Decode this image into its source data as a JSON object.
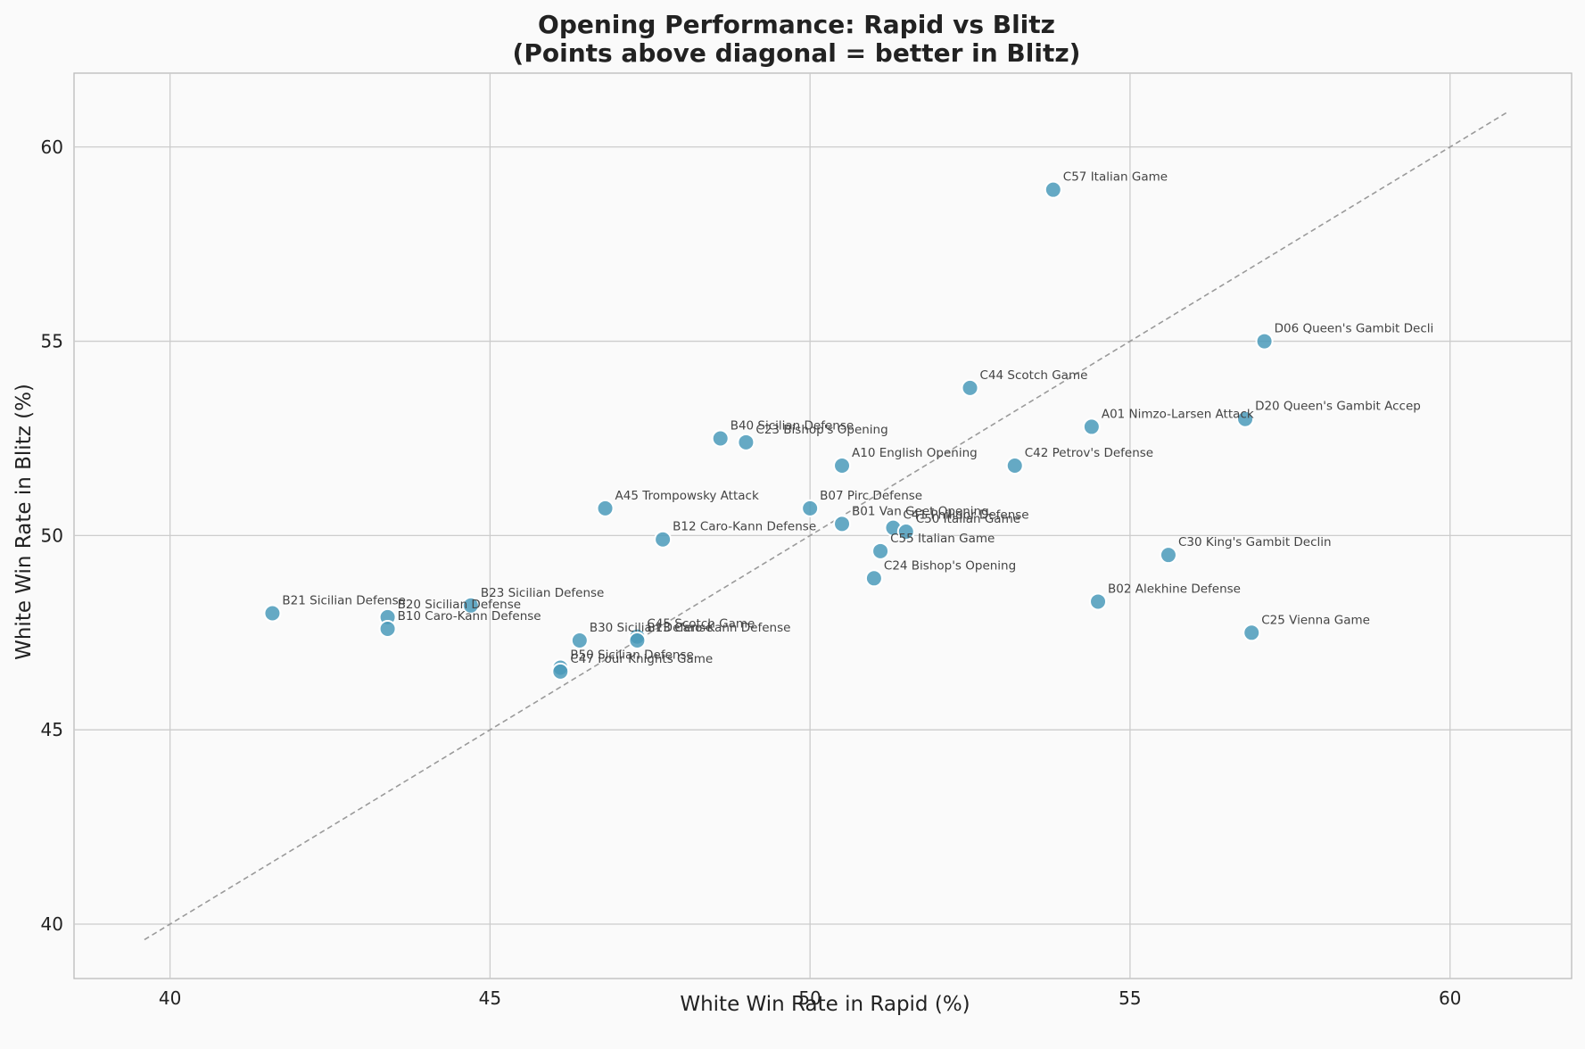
{
  "chart_data": {
    "type": "scatter",
    "title": "Opening Performance: Rapid vs Blitz",
    "subtitle": "(Points above diagonal = better in Blitz)",
    "xlabel": "White Win Rate in Rapid (%)",
    "ylabel": "White Win Rate in Blitz (%)",
    "xlim": [
      38.5,
      61.9
    ],
    "ylim": [
      38.6,
      61.9
    ],
    "xticks": [
      40,
      45,
      50,
      55,
      60
    ],
    "yticks": [
      40,
      45,
      50,
      55,
      60
    ],
    "grid": true,
    "reference_line": {
      "style": "dashed",
      "color": "#9a9a9a",
      "from": [
        39.6,
        39.6
      ],
      "to": [
        60.9,
        60.9
      ]
    },
    "point_color": "#4a9aba",
    "points": [
      {
        "label": "C57 Italian Game",
        "x": 53.8,
        "y": 58.9
      },
      {
        "label": "D06 Queen's Gambit Decli",
        "x": 57.1,
        "y": 55.0
      },
      {
        "label": "C44 Scotch Game",
        "x": 52.5,
        "y": 53.8
      },
      {
        "label": "D20 Queen's Gambit Accep",
        "x": 56.8,
        "y": 53.0
      },
      {
        "label": "A01 Nimzo-Larsen Attack",
        "x": 54.4,
        "y": 52.8
      },
      {
        "label": "B40 Sicilian Defense",
        "x": 48.6,
        "y": 52.5
      },
      {
        "label": "C23 Bishop's Opening",
        "x": 49.0,
        "y": 52.4
      },
      {
        "label": "A10 English Opening",
        "x": 50.5,
        "y": 51.8
      },
      {
        "label": "C42 Petrov's Defense",
        "x": 53.2,
        "y": 51.8
      },
      {
        "label": "A45 Trompowsky Attack",
        "x": 46.8,
        "y": 50.7
      },
      {
        "label": "B07 Pirc Defense",
        "x": 50.0,
        "y": 50.7
      },
      {
        "label": "B01 Van Geet Opening",
        "x": 50.5,
        "y": 50.3
      },
      {
        "label": "C41 Philidor Defense",
        "x": 51.3,
        "y": 50.2
      },
      {
        "label": "C50 Italian Game",
        "x": 51.5,
        "y": 50.1
      },
      {
        "label": "B12 Caro-Kann Defense",
        "x": 47.7,
        "y": 49.9
      },
      {
        "label": "C55 Italian Game",
        "x": 51.1,
        "y": 49.6
      },
      {
        "label": "C30 King's Gambit Declin",
        "x": 55.6,
        "y": 49.5
      },
      {
        "label": "C24 Bishop's Opening",
        "x": 51.0,
        "y": 48.9
      },
      {
        "label": "B02 Alekhine Defense",
        "x": 54.5,
        "y": 48.3
      },
      {
        "label": "B23 Sicilian Defense",
        "x": 44.7,
        "y": 48.2
      },
      {
        "label": "B21 Sicilian Defense",
        "x": 41.6,
        "y": 48.0
      },
      {
        "label": "B20 Sicilian Defense",
        "x": 43.4,
        "y": 47.9
      },
      {
        "label": "B10 Caro-Kann Defense",
        "x": 43.4,
        "y": 47.6
      },
      {
        "label": "C25 Vienna Game",
        "x": 56.9,
        "y": 47.5
      },
      {
        "label": "C45 Scotch Game",
        "x": 47.3,
        "y": 47.4
      },
      {
        "label": "B13 Caro-Kann Defense",
        "x": 47.3,
        "y": 47.3
      },
      {
        "label": "B30 Sicilian Defense",
        "x": 46.4,
        "y": 47.3
      },
      {
        "label": "B50 Sicilian Defense",
        "x": 46.1,
        "y": 46.6
      },
      {
        "label": "C47 Four Knights Game",
        "x": 46.1,
        "y": 46.5
      }
    ]
  }
}
